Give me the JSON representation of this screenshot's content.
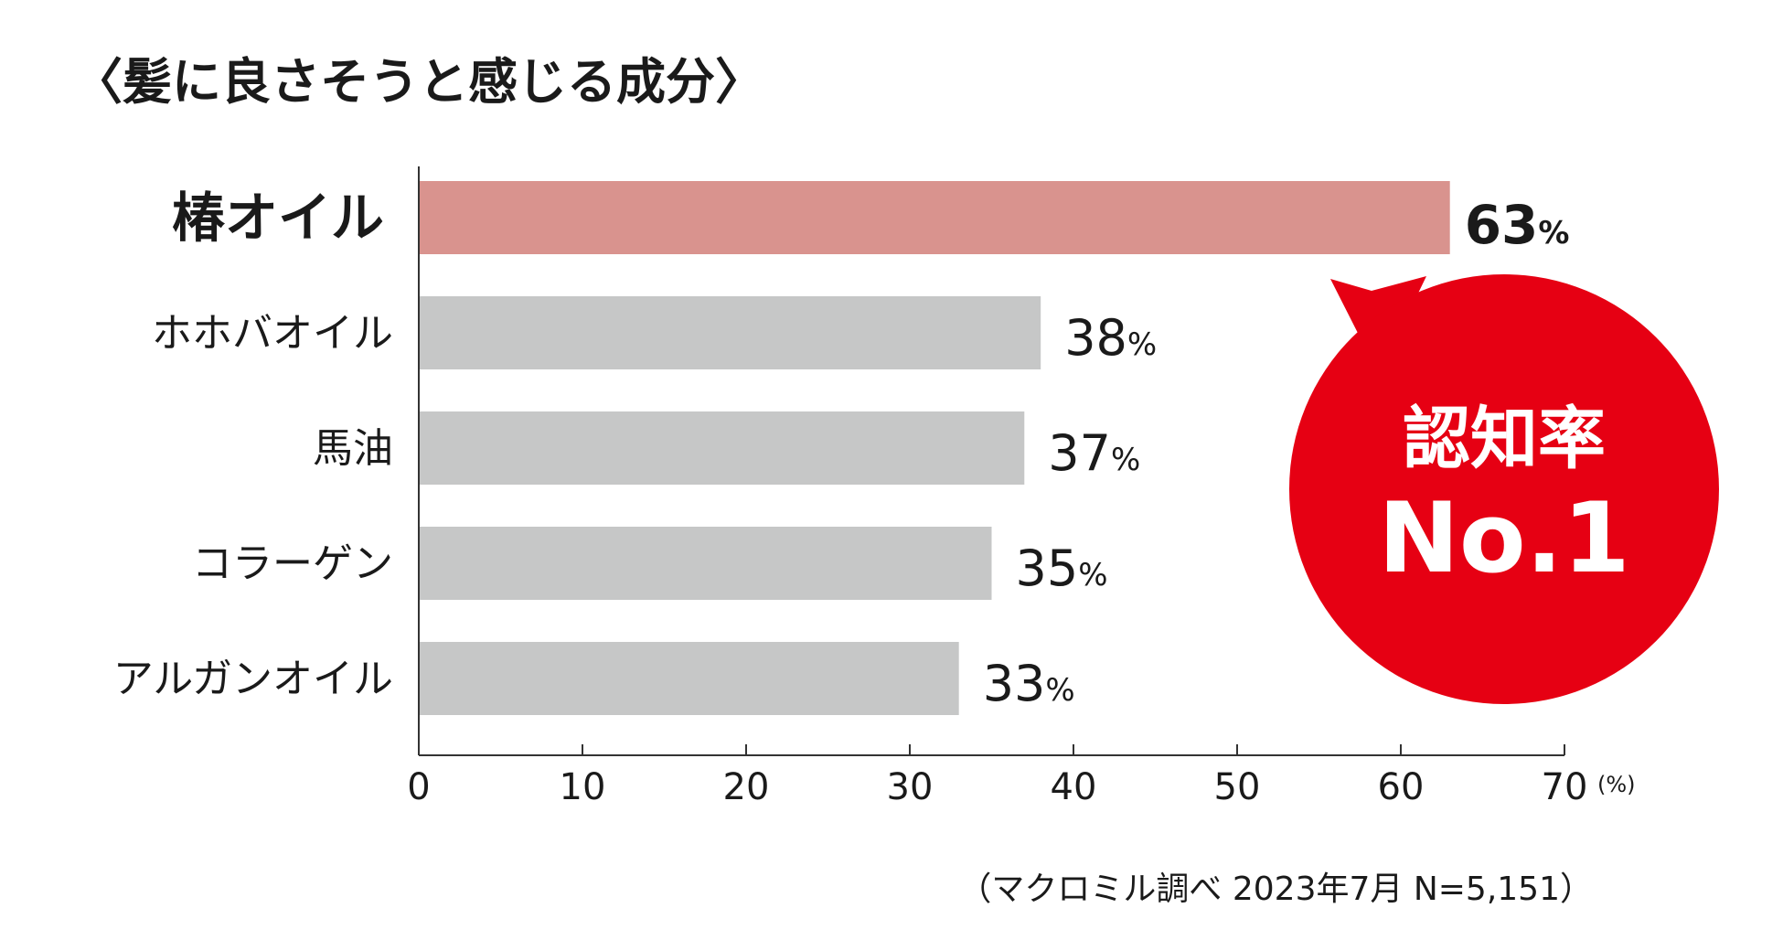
{
  "chart_data": {
    "type": "bar",
    "orientation": "horizontal",
    "title": "〈髪に良さそうと感じる成分〉",
    "categories": [
      "椿オイル",
      "ホホバオイル",
      "馬油",
      "コラーゲン",
      "アルガンオイル"
    ],
    "values": [
      63,
      38,
      37,
      35,
      33
    ],
    "value_labels": [
      "63",
      "38",
      "37",
      "35",
      "33"
    ],
    "value_unit": "%",
    "highlight_index": 0,
    "xlim": [
      0,
      70
    ],
    "xticks": [
      "0",
      "10",
      "20",
      "30",
      "40",
      "50",
      "60",
      "70"
    ],
    "x_unit": "(%)",
    "grid": false,
    "colors": {
      "highlight_bar": "#d9938e",
      "bar": "#c6c7c7",
      "badge": "#e60013",
      "axis": "#333333"
    },
    "annotation": {
      "line1": "認知率",
      "line2": "No.1"
    },
    "source": "（マクロミル調べ 2023年7月 N=5,151）"
  }
}
